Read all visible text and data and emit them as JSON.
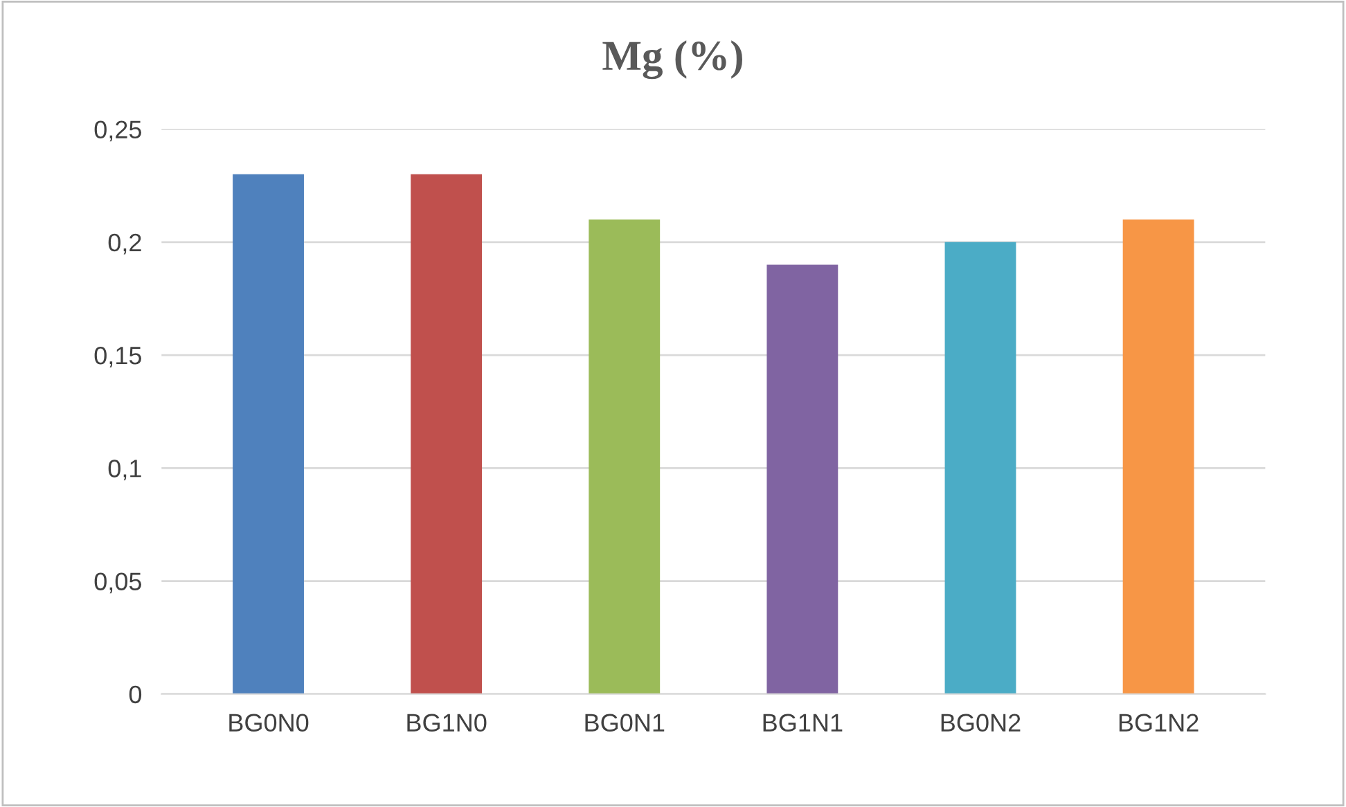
{
  "chart_data": {
    "type": "bar",
    "title": "Mg (%)",
    "categories": [
      "BG0N0",
      "BG1N0",
      "BG0N1",
      "BG1N1",
      "BG0N2",
      "BG1N2"
    ],
    "values": [
      0.23,
      0.23,
      0.21,
      0.19,
      0.2,
      0.21
    ],
    "colors": [
      "#4f81bd",
      "#c0504d",
      "#9bbb59",
      "#8064a2",
      "#4bacc6",
      "#f79646"
    ],
    "ylim": [
      0,
      0.25
    ],
    "yticks": [
      {
        "value": 0,
        "label": "0"
      },
      {
        "value": 0.05,
        "label": "0,05"
      },
      {
        "value": 0.1,
        "label": "0,1"
      },
      {
        "value": 0.15,
        "label": "0,15"
      },
      {
        "value": 0.2,
        "label": "0,2"
      },
      {
        "value": 0.25,
        "label": "0,25"
      }
    ],
    "grid": "y"
  }
}
